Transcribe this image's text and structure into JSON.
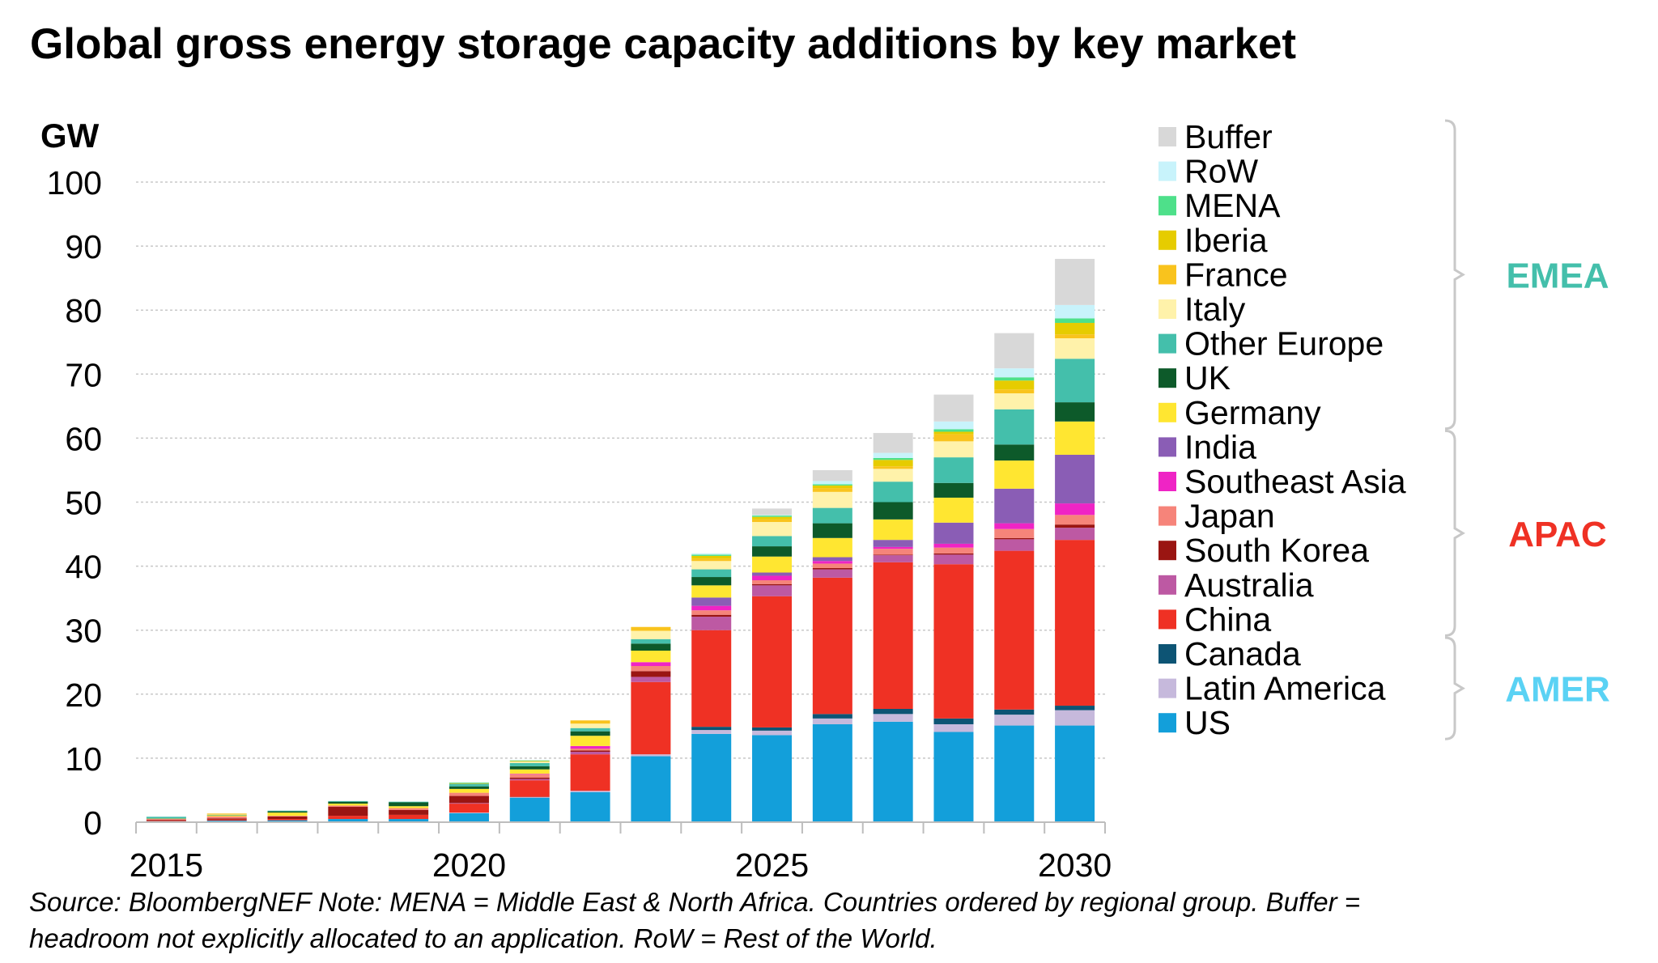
{
  "chart_data": {
    "type": "bar",
    "stacked": true,
    "title": "Global gross energy storage capacity additions by key market",
    "ylabel": "GW",
    "xlabel": "",
    "ylim": [
      0,
      100
    ],
    "yticks": [
      0,
      10,
      20,
      30,
      40,
      50,
      60,
      70,
      80,
      90,
      100
    ],
    "xtick_labels": [
      "2015",
      "2020",
      "2025",
      "2030"
    ],
    "grid": true,
    "legend_placement": "right",
    "categories": [
      "2015",
      "2016",
      "2017",
      "2018",
      "2019",
      "2020",
      "2021",
      "2022",
      "2023",
      "2024",
      "2025",
      "2026",
      "2027",
      "2028",
      "2029",
      "2030"
    ],
    "series": [
      {
        "name": "US",
        "color": "#139fda",
        "values": [
          0.15,
          0.25,
          0.3,
          0.5,
          0.5,
          1.4,
          3.8,
          4.7,
          10.3,
          13.8,
          13.6,
          15.3,
          15.7,
          14.1,
          15.1,
          15.1
        ]
      },
      {
        "name": "Latin America",
        "color": "#c6b9dc",
        "values": [
          0,
          0,
          0,
          0,
          0,
          0.1,
          0.1,
          0.2,
          0.3,
          0.6,
          0.7,
          0.9,
          1.2,
          1.2,
          1.7,
          2.4
        ]
      },
      {
        "name": "Canada",
        "color": "#0d5474",
        "values": [
          0.02,
          0,
          0,
          0,
          0,
          0,
          0.05,
          0,
          0,
          0.5,
          0.5,
          0.7,
          0.8,
          0.9,
          0.8,
          0.7
        ]
      },
      {
        "name": "China",
        "color": "#ef3124",
        "values": [
          0.13,
          0.15,
          0.2,
          0.5,
          0.65,
          1.4,
          2.6,
          5.7,
          11.3,
          15.1,
          20.5,
          21.3,
          22.9,
          24.1,
          24.8,
          25.9
        ]
      },
      {
        "name": "Australia",
        "color": "#bd59a3",
        "values": [
          0,
          0,
          0,
          0,
          0,
          0.1,
          0.2,
          0.4,
          0.8,
          2.1,
          1.7,
          1.3,
          1.1,
          1.5,
          1.8,
          1.9
        ]
      },
      {
        "name": "South Korea",
        "color": "#9a1512",
        "values": [
          0.1,
          0.2,
          0.4,
          1.4,
          0.75,
          1.1,
          0.2,
          0.2,
          0.9,
          0.3,
          0.2,
          0.2,
          0.1,
          0.2,
          0.2,
          0.5
        ]
      },
      {
        "name": "Japan",
        "color": "#f6847a",
        "values": [
          0.1,
          0.3,
          0.1,
          0.2,
          0.3,
          0.5,
          0.5,
          0.3,
          0.8,
          0.7,
          0.6,
          0.7,
          0.9,
          0.9,
          1.4,
          1.5
        ]
      },
      {
        "name": "Southeast Asia",
        "color": "#ef24c5",
        "values": [
          0,
          0,
          0,
          0,
          0,
          0,
          0.1,
          0.4,
          0.6,
          0.7,
          0.7,
          0.4,
          0.3,
          0.6,
          0.9,
          1.8
        ]
      },
      {
        "name": "India",
        "color": "#8a5db5",
        "values": [
          0,
          0,
          0,
          0,
          0,
          0,
          0,
          0,
          0,
          1.3,
          0.5,
          0.6,
          1.1,
          3.3,
          5.4,
          7.6
        ]
      },
      {
        "name": "Germany",
        "color": "#ffe631",
        "values": [
          0.05,
          0.15,
          0.5,
          0.3,
          0.3,
          0.6,
          0.7,
          1.6,
          1.8,
          1.9,
          2.5,
          3.0,
          3.2,
          3.9,
          4.4,
          5.2
        ]
      },
      {
        "name": "UK",
        "color": "#0d5a2a",
        "values": [
          0.05,
          0.05,
          0.2,
          0.3,
          0.6,
          0.4,
          0.5,
          0.7,
          1.1,
          1.3,
          1.6,
          2.3,
          2.7,
          2.3,
          2.5,
          3.0
        ]
      },
      {
        "name": "Other Europe",
        "color": "#44bfab",
        "values": [
          0.25,
          0.05,
          0.1,
          0.1,
          0.1,
          0.4,
          0.5,
          0.5,
          0.7,
          1.2,
          1.6,
          2.4,
          3.2,
          4.0,
          5.5,
          6.8
        ]
      },
      {
        "name": "Italy",
        "color": "#fff2aa",
        "values": [
          0,
          0.05,
          0,
          0,
          0,
          0,
          0.2,
          0.7,
          1.3,
          1.3,
          2.2,
          2.5,
          2.0,
          2.5,
          2.5,
          3.2
        ]
      },
      {
        "name": "France",
        "color": "#f9c31d",
        "values": [
          0,
          0.15,
          0,
          0,
          0,
          0.1,
          0.1,
          0.5,
          0.6,
          0.4,
          0.4,
          0.6,
          0.4,
          1.1,
          0.6,
          0.6
        ]
      },
      {
        "name": "Iberia",
        "color": "#e6cc00",
        "values": [
          0,
          0,
          0,
          0,
          0,
          0,
          0,
          0,
          0,
          0.4,
          0.4,
          0.4,
          1.0,
          0.4,
          1.4,
          1.8
        ]
      },
      {
        "name": "MENA",
        "color": "#4ee08a",
        "values": [
          0,
          0,
          0,
          0,
          0,
          0.1,
          0.1,
          0,
          0,
          0.2,
          0.2,
          0.2,
          0.3,
          0.4,
          0.5,
          0.7
        ]
      },
      {
        "name": "RoW",
        "color": "#c8f3fb",
        "values": [
          0,
          0,
          0,
          0,
          0,
          0,
          0,
          0,
          0,
          0.2,
          0.1,
          0.5,
          0.8,
          1.2,
          1.4,
          2.1
        ]
      },
      {
        "name": "Buffer",
        "color": "#d8d8d8",
        "values": [
          0,
          0,
          0,
          0,
          0,
          0,
          0,
          0,
          0,
          0,
          1.0,
          1.7,
          3.1,
          4.2,
          5.5,
          7.2
        ]
      }
    ],
    "regions": [
      {
        "name": "EMEA",
        "color": "#44bfab",
        "members": [
          "Buffer",
          "RoW",
          "MENA",
          "Iberia",
          "France",
          "Italy",
          "Other Europe",
          "UK",
          "Germany"
        ]
      },
      {
        "name": "APAC",
        "color": "#ef3124",
        "members": [
          "India",
          "Southeast Asia",
          "Japan",
          "South Korea",
          "Australia",
          "China"
        ]
      },
      {
        "name": "AMER",
        "color": "#5ad2f4",
        "members": [
          "Canada",
          "Latin America",
          "US"
        ]
      }
    ]
  },
  "footnote": {
    "line1": "Source: BloombergNEF Note: MENA = Middle East & North Africa. Countries ordered by regional group. Buffer =",
    "line2": "headroom not explicitly allocated to an application. RoW = Rest of the World."
  }
}
